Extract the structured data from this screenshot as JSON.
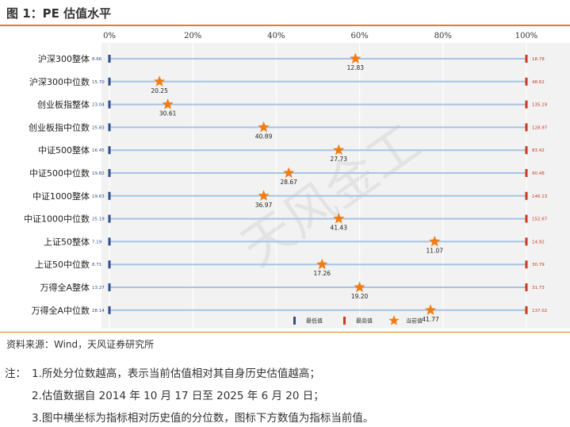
{
  "header": {
    "title": "图 1：PE 估值水平"
  },
  "chart_data": {
    "type": "scatter",
    "title": "",
    "x_ticks": [
      "0%",
      "20%",
      "40%",
      "60%",
      "80%",
      "100%"
    ],
    "xlim": [
      0,
      100
    ],
    "grid": true,
    "categories": [
      "沪深300整体",
      "沪深300中位数",
      "创业板指整体",
      "创业板指中位数",
      "中证500整体",
      "中证500中位数",
      "中证1000整体",
      "中证1000中位数",
      "上证50整体",
      "上证50中位数",
      "万得全A整体",
      "万得全A中位数"
    ],
    "min_labels": [
      "8.66",
      "15.70",
      "23.04",
      "25.83",
      "16.45",
      "19.82",
      "19.63",
      "25.19",
      "7.19",
      "8.71",
      "13.27",
      "28.14"
    ],
    "max_labels": [
      "18.78",
      "48.62",
      "135.19",
      "128.97",
      "83.42",
      "90.48",
      "146.13",
      "152.67",
      "14.92",
      "30.79",
      "31.73",
      "137.02"
    ],
    "current_labels": [
      "12.83",
      "20.25",
      "30.61",
      "40.89",
      "27.73",
      "28.67",
      "36.97",
      "41.43",
      "11.07",
      "17.26",
      "19.20",
      "41.77"
    ],
    "percentiles": [
      59,
      12,
      14,
      37,
      55,
      43,
      37,
      55,
      78,
      51,
      60,
      77
    ],
    "legend": {
      "position": "bottom-right",
      "items": [
        "最低值",
        "最高值",
        "当前值"
      ]
    },
    "colors": {
      "min": "#2f4d8c",
      "max": "#c8391f",
      "current": "#f07c14",
      "line": "#a6c4e4",
      "plot_bg": "#f2f2f2",
      "grid": "#ffffff"
    },
    "watermark": "天风金工"
  },
  "source": "资料来源：Wind，天风证券研究所",
  "notes": {
    "label": "注：",
    "items": [
      "1.所处分位数越高，表示当前估值相对其自身历史估值越高；",
      "2.估值数据自 2014 年 10 月 17 日至 2025 年 6 月 20 日；",
      "3.图中横坐标为指标相对历史值的分位数，图标下方数值为指标当前值。"
    ]
  }
}
